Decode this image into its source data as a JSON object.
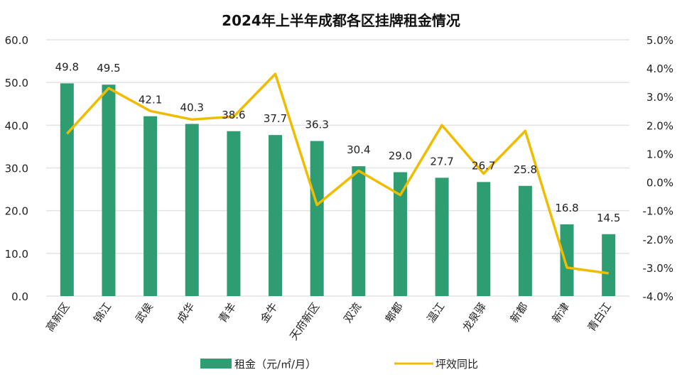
{
  "chart_data": {
    "type": "bar",
    "title": "2024年上半年成都各区挂牌租金情况",
    "categories": [
      "高新区",
      "锦江",
      "武侯",
      "成华",
      "青羊",
      "金牛",
      "天府新区",
      "双流",
      "郫都",
      "温江",
      "龙泉驿",
      "新都",
      "新津",
      "青白江"
    ],
    "series": [
      {
        "name": "租金（元/㎡/月）",
        "type": "bar",
        "axis": "left",
        "color": "#2e9e72",
        "values": [
          49.8,
          49.5,
          42.1,
          40.3,
          38.6,
          37.7,
          36.3,
          30.4,
          29.0,
          27.7,
          26.7,
          25.8,
          16.8,
          14.5
        ],
        "labels": [
          "49.8",
          "49.5",
          "42.1",
          "40.3",
          "38.6",
          "37.7",
          "36.3",
          "30.4",
          "29.0",
          "27.7",
          "26.7",
          "25.8",
          "16.8",
          "14.5"
        ]
      },
      {
        "name": "坪效同比",
        "type": "line",
        "axis": "right",
        "color": "#f0bc00",
        "values": [
          1.7,
          3.3,
          2.5,
          2.2,
          2.3,
          3.8,
          -0.8,
          0.4,
          -0.45,
          2.0,
          0.3,
          1.8,
          -3.0,
          -3.2
        ]
      }
    ],
    "left_axis": {
      "ylim": [
        0,
        60
      ],
      "ticks": [
        "0.0",
        "10.0",
        "20.0",
        "30.0",
        "40.0",
        "50.0",
        "60.0"
      ]
    },
    "right_axis": {
      "ylim": [
        -4,
        5
      ],
      "unit": "%",
      "ticks": [
        "-4.0%",
        "-3.0%",
        "-2.0%",
        "-1.0%",
        "0.0%",
        "1.0%",
        "2.0%",
        "3.0%",
        "4.0%",
        "5.0%"
      ]
    },
    "grid": true,
    "legend": "bottom"
  }
}
